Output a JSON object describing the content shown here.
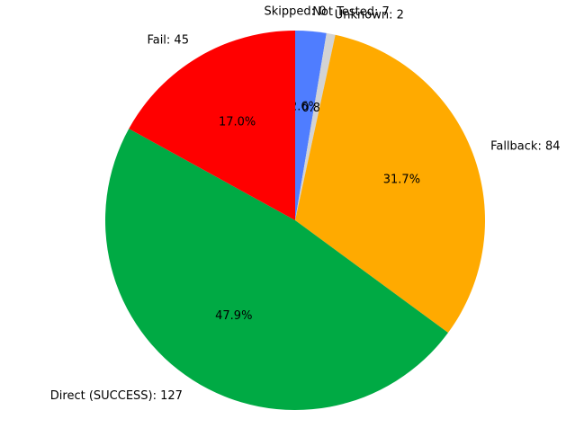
{
  "chart_data": {
    "type": "pie",
    "title": "",
    "start_angle_deg": 90,
    "direction": "clockwise",
    "slices": [
      {
        "label": "Skipped: 0",
        "category": "Skipped",
        "value": 0,
        "pct": "0.0%",
        "color": "#1f77b4"
      },
      {
        "label": "Not Tested: 7",
        "category": "Not Tested",
        "value": 7,
        "pct": "2.6%",
        "color": "#4f7dff"
      },
      {
        "label": "Unknown: 2",
        "category": "Unknown",
        "value": 2,
        "pct": "0.8%",
        "color": "#d3d3d3"
      },
      {
        "label": "Fallback: 84",
        "category": "Fallback",
        "value": 84,
        "pct": "31.7%",
        "color": "#ffaa00"
      },
      {
        "label": "Direct (SUCCESS): 127",
        "category": "Direct (SUCCESS)",
        "value": 127,
        "pct": "47.9%",
        "color": "#00aa44"
      },
      {
        "label": "Fail: 45",
        "category": "Fail",
        "value": 45,
        "pct": "17.0%",
        "color": "#ff0000"
      }
    ]
  }
}
